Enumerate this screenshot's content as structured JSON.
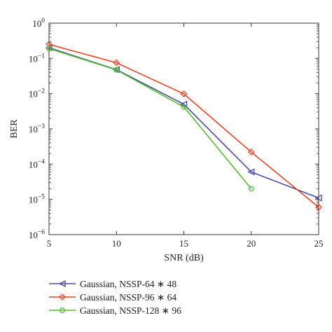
{
  "chart_data": {
    "type": "line",
    "xlabel": "SNR (dB)",
    "ylabel": "BER",
    "xlim": [
      5,
      25
    ],
    "ylim": [
      1e-06,
      1
    ],
    "yscale": "log",
    "x_ticks": [
      5,
      10,
      15,
      20,
      25
    ],
    "y_ticks": [
      {
        "exp": 0,
        "base": "10",
        "sup": "0"
      },
      {
        "exp": -1,
        "base": "10",
        "sup": "−1"
      },
      {
        "exp": -2,
        "base": "10",
        "sup": "−2"
      },
      {
        "exp": -3,
        "base": "10",
        "sup": "−3"
      },
      {
        "exp": -4,
        "base": "10",
        "sup": "−4"
      },
      {
        "exp": -5,
        "base": "10",
        "sup": "−5"
      },
      {
        "exp": -6,
        "base": "10",
        "sup": "−6"
      }
    ],
    "grid": false,
    "legend_position": "below",
    "series": [
      {
        "name": "Gaussian, NSSP-64 ∗ 48",
        "color": "#4a4aa8",
        "marker": "triangle-left",
        "x": [
          5,
          10,
          15,
          20,
          25
        ],
        "y": [
          0.2,
          0.048,
          0.005,
          6e-05,
          1.1e-05
        ]
      },
      {
        "name": "Gaussian, NSSP-96 ∗ 64",
        "color": "#e8462a",
        "marker": "diamond",
        "x": [
          5,
          10,
          15,
          20,
          25
        ],
        "y": [
          0.25,
          0.075,
          0.0098,
          0.00022,
          6e-06
        ]
      },
      {
        "name": "Gaussian, NSSP-128 ∗ 96",
        "color": "#55bb33",
        "marker": "circle",
        "x": [
          5,
          10,
          15,
          20
        ],
        "y": [
          0.19,
          0.047,
          0.0042,
          2e-05
        ]
      }
    ]
  }
}
